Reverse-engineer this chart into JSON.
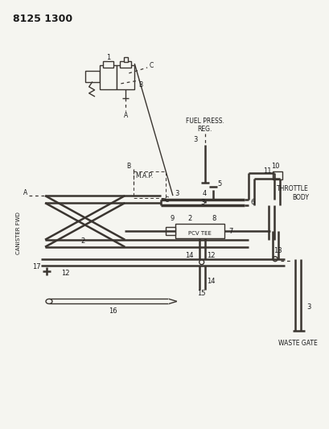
{
  "title": "8125 1300",
  "bg_color": "#f5f5f0",
  "line_color": "#3a3530",
  "text_color": "#1a1a1a",
  "diagram_labels": {
    "title": "8125 1300",
    "fuel_press_reg": "FUEL PRESS.\nREG.",
    "throttle_body": "THROTTLE\nBODY",
    "waste_gate": "WASTE GATE",
    "canister_fwd": "CANISTER FWD",
    "map": "M.A.P.",
    "pcv_tee": "PCV TEE"
  },
  "figsize": [
    4.1,
    5.33
  ],
  "dpi": 100
}
